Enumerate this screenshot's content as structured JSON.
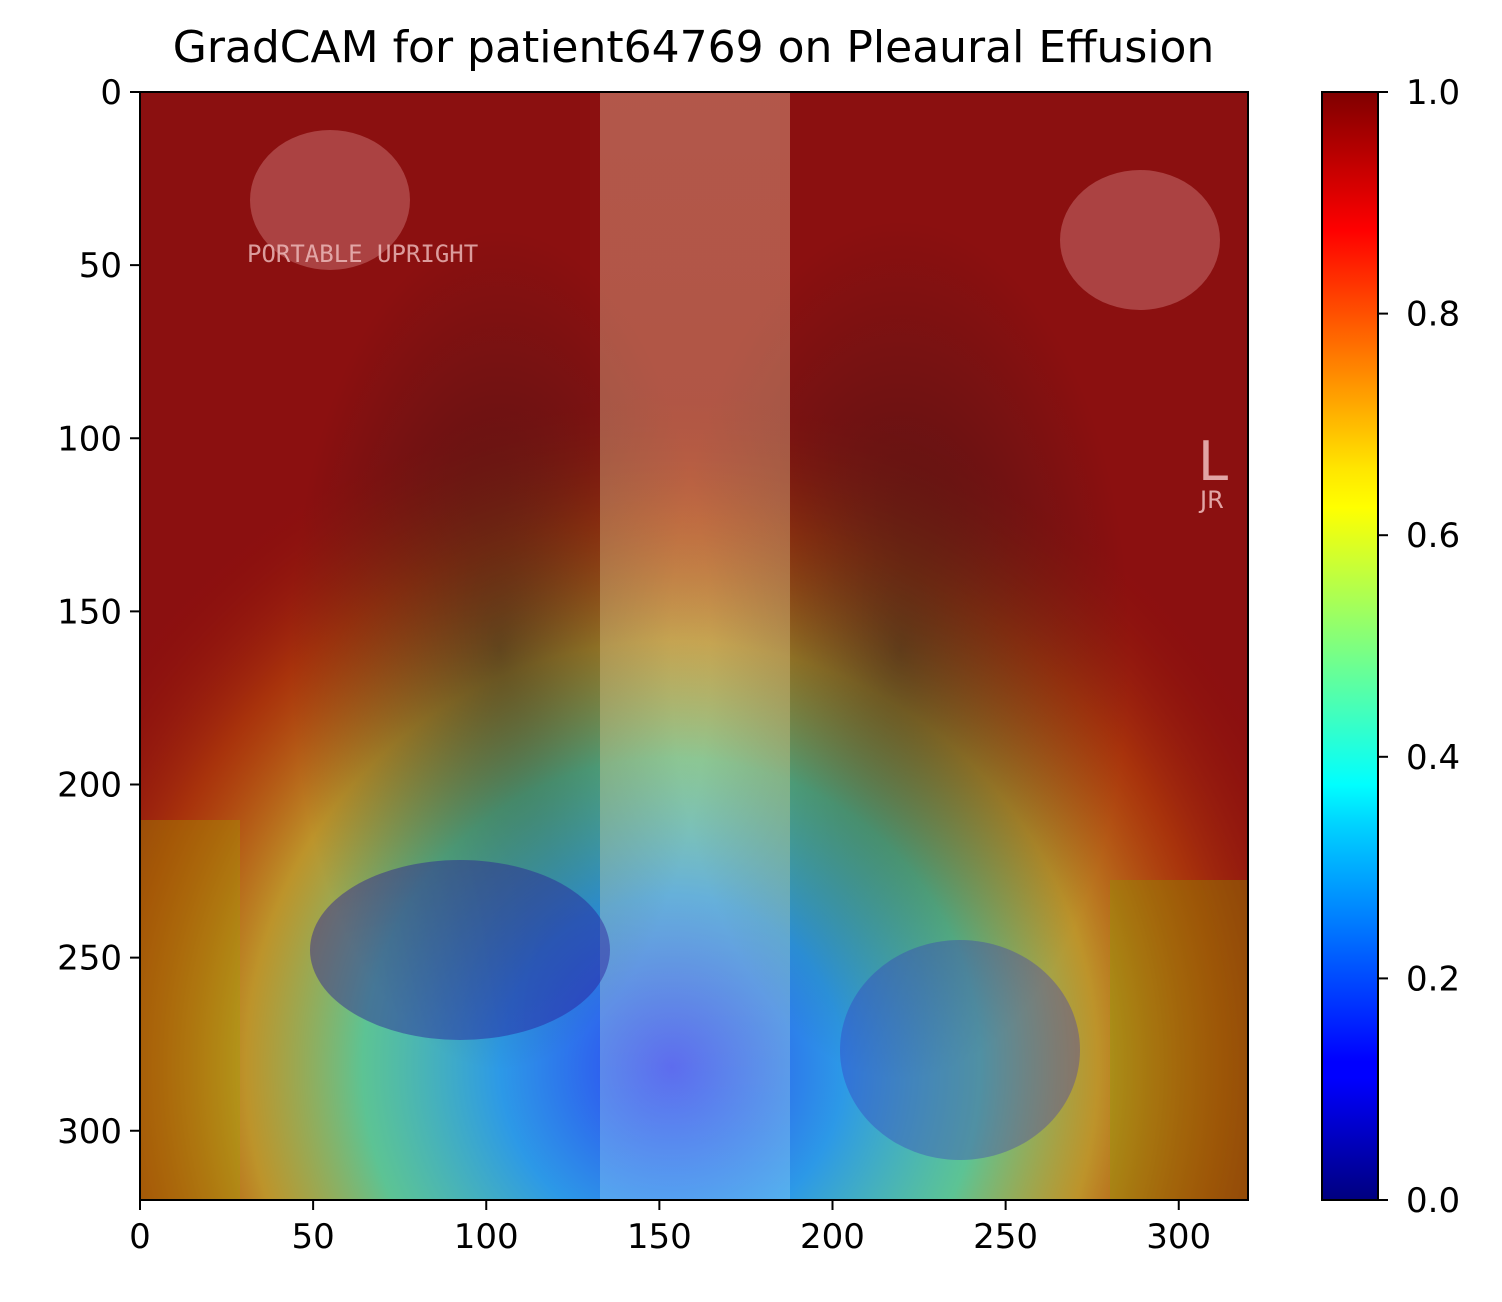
{
  "chart_data": {
    "type": "heatmap",
    "title": "GradCAM for patient64769 on Pleaural Effusion",
    "xlabel": "",
    "ylabel": "",
    "xlim": [
      0,
      320
    ],
    "ylim": [
      320,
      0
    ],
    "x_ticks": [
      0,
      50,
      100,
      150,
      200,
      250,
      300
    ],
    "x_tick_labels": [
      "0",
      "50",
      "100",
      "150",
      "200",
      "250",
      "300"
    ],
    "y_ticks": [
      0,
      50,
      100,
      150,
      200,
      250,
      300
    ],
    "y_tick_labels": [
      "0",
      "50",
      "100",
      "150",
      "200",
      "250",
      "300"
    ],
    "grid": false,
    "colormap": "jet",
    "colorbar": {
      "range": [
        0,
        1
      ],
      "ticks": [
        0.0,
        0.2,
        0.4,
        0.6,
        0.8,
        1.0
      ],
      "tick_labels": [
        "0.0",
        "0.2",
        "0.4",
        "0.6",
        "0.8",
        "1.0"
      ]
    },
    "background_image": "chest x-ray (frontal)",
    "image_text": [
      "PORTABLE UPRIGHT",
      "L",
      "JR"
    ],
    "heatmap_description": "high activation (≈1.0) along top and outer edges; low activation (≈0.1–0.3) over lower lung fields and diaphragm"
  },
  "colors": {
    "jet_low": "#00007f",
    "jet_mid": "#7fff7f",
    "jet_high": "#7f0000"
  }
}
